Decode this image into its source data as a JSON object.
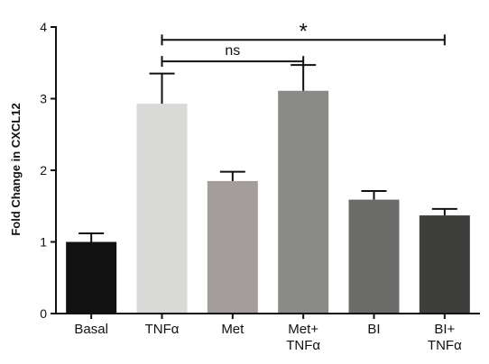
{
  "chart_data": {
    "type": "bar",
    "title": "",
    "xlabel": "",
    "ylabel": "Fold Change in CXCL12",
    "ylim": [
      0,
      4
    ],
    "yticks": [
      "0",
      "1",
      "2",
      "3",
      "4"
    ],
    "categories": [
      [
        "Basal"
      ],
      [
        "TNFα"
      ],
      [
        "Met"
      ],
      [
        "Met+",
        "TNFα"
      ],
      [
        "BI"
      ],
      [
        "BI+",
        "TNFα"
      ]
    ],
    "values": [
      1.0,
      2.93,
      1.85,
      3.11,
      1.59,
      1.37
    ],
    "errors": [
      0.12,
      0.42,
      0.13,
      0.36,
      0.12,
      0.09
    ],
    "colors": [
      "#111111",
      "#d9d9d7",
      "#a39d9b",
      "#8a8a86",
      "#6b6b6a",
      "#3e3e3c"
    ],
    "significance": [
      {
        "from": 1,
        "to": 5,
        "label": "*",
        "level": 3.82
      },
      {
        "from": 1,
        "to": 3,
        "label": "ns",
        "level": 3.52
      }
    ]
  }
}
